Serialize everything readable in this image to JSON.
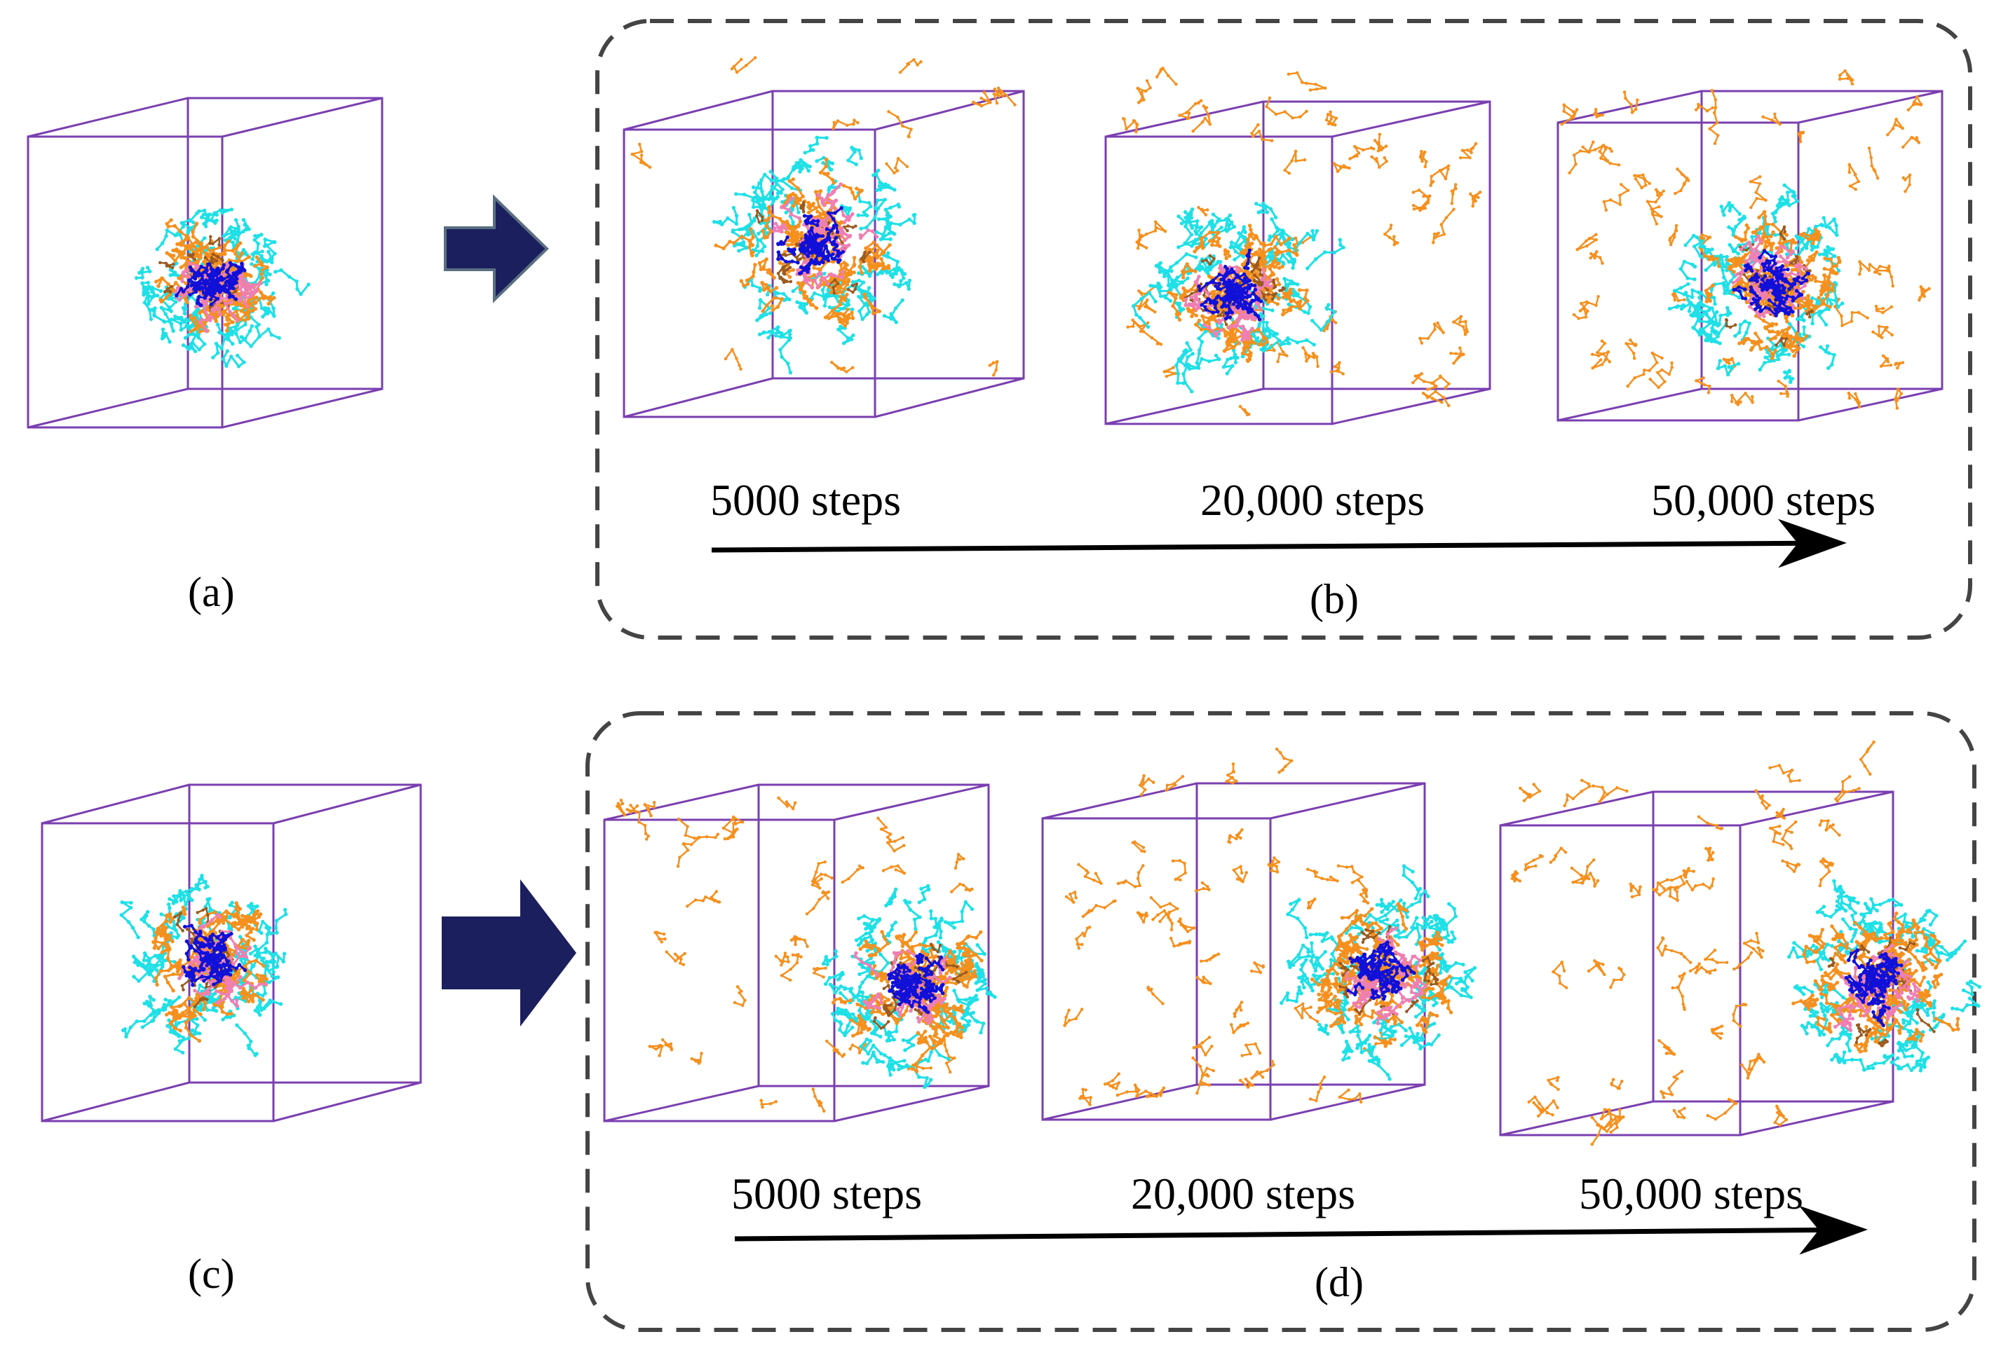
{
  "figure": {
    "rows": [
      {
        "initial_label": "(a)",
        "sequence_label": "(b)",
        "step_labels": [
          "5000 steps",
          "20,000 steps",
          "50,000 steps"
        ]
      },
      {
        "initial_label": "(c)",
        "sequence_label": "(d)",
        "step_labels": [
          "5000 steps",
          "20,000 steps",
          "50,000 steps"
        ]
      }
    ]
  },
  "colors": {
    "box_edge": "#7a3fb0",
    "frame_dash": "#444444",
    "block_arrow": "#1b1f5e",
    "timeline_arrow": "#000000",
    "chain_cyan": "#1fe0e6",
    "chain_orange": "#f5901e",
    "chain_pink": "#ef7fb3",
    "core_blue": "#1010d8",
    "chain_brown": "#9a5a20"
  },
  "legend_icons": {
    "simulation_box": "cube-wireframe-icon",
    "transition": "right-block-arrow-icon"
  }
}
